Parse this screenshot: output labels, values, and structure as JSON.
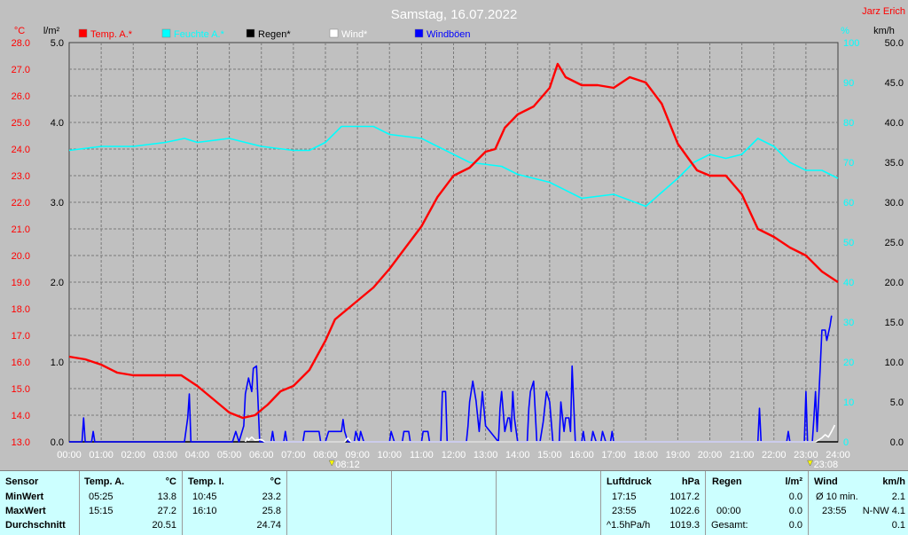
{
  "header": {
    "title": "Samstag, 16.07.2022",
    "author": "Jarz Erich"
  },
  "legend": [
    {
      "label": "Temp. A.*",
      "color": "#ff0000"
    },
    {
      "label": "Feuchte A.*",
      "color": "#00ffff"
    },
    {
      "label": "Regen*",
      "color": "#000000"
    },
    {
      "label": "Wind*",
      "color": "#ffffff"
    },
    {
      "label": "Windböen",
      "color": "#0000ff"
    }
  ],
  "axes": {
    "temp_unit": "°C",
    "rain_unit": "l/m²",
    "hum_unit": "%",
    "wind_unit": "km/h",
    "temp_ticks": [
      "28.0",
      "27.0",
      "26.0",
      "25.0",
      "24.0",
      "23.0",
      "22.0",
      "21.0",
      "20.0",
      "19.0",
      "18.0",
      "17.0",
      "16.0",
      "15.0",
      "14.0",
      "13.0"
    ],
    "rain_ticks": [
      "5.0",
      "4.0",
      "3.0",
      "2.0",
      "1.0",
      "0.0"
    ],
    "hum_ticks": [
      "100",
      "90",
      "80",
      "70",
      "60",
      "50",
      "40",
      "30",
      "20",
      "10",
      "0"
    ],
    "wind_ticks": [
      "50.0",
      "45.0",
      "40.0",
      "35.0",
      "30.0",
      "25.0",
      "20.0",
      "15.0",
      "10.0",
      "5.0",
      "0.0"
    ],
    "time_ticks": [
      "00:00",
      "01:00",
      "02:00",
      "03:00",
      "04:00",
      "05:00",
      "06:00",
      "07:00",
      "08:00",
      "09:00",
      "10:00",
      "11:00",
      "12:00",
      "13:00",
      "14:00",
      "15:00",
      "16:00",
      "17:00",
      "18:00",
      "19:00",
      "20:00",
      "21:00",
      "22:00",
      "23:00",
      "24:00"
    ],
    "markers": [
      {
        "time": 8.2,
        "label": "08:12"
      },
      {
        "time": 23.13,
        "label": "23:08"
      }
    ]
  },
  "chart_data": {
    "type": "line",
    "title": "Samstag, 16.07.2022",
    "xlim": [
      0,
      24
    ],
    "temp_ylim": [
      13,
      28
    ],
    "rain_ylim": [
      0,
      5
    ],
    "hum_ylim": [
      0,
      100
    ],
    "wind_ylim": [
      0,
      50
    ],
    "grid": true,
    "series": [
      {
        "name": "Temp. A.*",
        "color": "#ff0000",
        "axis": "temp",
        "points": [
          [
            0,
            16.2
          ],
          [
            0.5,
            16.1
          ],
          [
            1,
            15.9
          ],
          [
            1.5,
            15.6
          ],
          [
            2,
            15.5
          ],
          [
            2.5,
            15.5
          ],
          [
            3.3,
            15.5
          ],
          [
            3.5,
            15.5
          ],
          [
            4,
            15.1
          ],
          [
            4.5,
            14.6
          ],
          [
            5,
            14.1
          ],
          [
            5.42,
            13.9
          ],
          [
            5.8,
            14
          ],
          [
            6.2,
            14.4
          ],
          [
            6.6,
            14.9
          ],
          [
            7,
            15.1
          ],
          [
            7.5,
            15.7
          ],
          [
            8,
            16.8
          ],
          [
            8.3,
            17.6
          ],
          [
            8.7,
            18
          ],
          [
            9,
            18.3
          ],
          [
            9.5,
            18.8
          ],
          [
            10,
            19.5
          ],
          [
            10.5,
            20.3
          ],
          [
            11,
            21.1
          ],
          [
            11.5,
            22.2
          ],
          [
            12,
            23
          ],
          [
            12.5,
            23.3
          ],
          [
            13,
            23.9
          ],
          [
            13.3,
            24
          ],
          [
            13.6,
            24.8
          ],
          [
            14,
            25.3
          ],
          [
            14.5,
            25.6
          ],
          [
            15,
            26.3
          ],
          [
            15.25,
            27.2
          ],
          [
            15.5,
            26.7
          ],
          [
            16,
            26.4
          ],
          [
            16.5,
            26.4
          ],
          [
            17,
            26.3
          ],
          [
            17.5,
            26.7
          ],
          [
            18,
            26.5
          ],
          [
            18.5,
            25.7
          ],
          [
            19,
            24.2
          ],
          [
            19.3,
            23.7
          ],
          [
            19.6,
            23.2
          ],
          [
            20,
            23
          ],
          [
            20.5,
            23
          ],
          [
            21,
            22.3
          ],
          [
            21.5,
            21
          ],
          [
            22,
            20.7
          ],
          [
            22.5,
            20.3
          ],
          [
            23,
            20
          ],
          [
            23.5,
            19.4
          ],
          [
            24,
            19
          ]
        ]
      },
      {
        "name": "Feuchte A.*",
        "color": "#00ffff",
        "axis": "hum",
        "points": [
          [
            0,
            73
          ],
          [
            1,
            74
          ],
          [
            2,
            74
          ],
          [
            3,
            75
          ],
          [
            3.6,
            76
          ],
          [
            4,
            75
          ],
          [
            5,
            76
          ],
          [
            6,
            74
          ],
          [
            7,
            73
          ],
          [
            7.5,
            73
          ],
          [
            8,
            75
          ],
          [
            8.5,
            79
          ],
          [
            9,
            79
          ],
          [
            9.5,
            79
          ],
          [
            10,
            77
          ],
          [
            11,
            76
          ],
          [
            11.5,
            74
          ],
          [
            12,
            72
          ],
          [
            12.5,
            70
          ],
          [
            13.5,
            69
          ],
          [
            14,
            67
          ],
          [
            15,
            65
          ],
          [
            16,
            61
          ],
          [
            17,
            62
          ],
          [
            18,
            59
          ],
          [
            19,
            66
          ],
          [
            19.5,
            70
          ],
          [
            20,
            72
          ],
          [
            20.5,
            71
          ],
          [
            21,
            72
          ],
          [
            21.5,
            76
          ],
          [
            22,
            74
          ],
          [
            22.5,
            70
          ],
          [
            23,
            68
          ],
          [
            23.5,
            68
          ],
          [
            24,
            66
          ]
        ]
      },
      {
        "name": "Windböen",
        "color": "#0000ff",
        "axis": "wind",
        "points": [
          [
            0,
            0
          ],
          [
            0.4,
            0
          ],
          [
            0.45,
            3
          ],
          [
            0.5,
            0
          ],
          [
            0.7,
            0
          ],
          [
            0.75,
            1.3
          ],
          [
            0.8,
            0
          ],
          [
            3.6,
            0
          ],
          [
            3.7,
            3
          ],
          [
            3.75,
            6
          ],
          [
            3.8,
            0
          ],
          [
            5.1,
            0
          ],
          [
            5.2,
            1.3
          ],
          [
            5.3,
            0
          ],
          [
            5.45,
            2
          ],
          [
            5.5,
            6
          ],
          [
            5.6,
            8
          ],
          [
            5.7,
            6.3
          ],
          [
            5.75,
            9.2
          ],
          [
            5.85,
            9.5
          ],
          [
            5.95,
            0
          ],
          [
            6.3,
            0
          ],
          [
            6.35,
            1.3
          ],
          [
            6.4,
            0
          ],
          [
            6.7,
            0
          ],
          [
            6.75,
            1.3
          ],
          [
            6.8,
            0
          ],
          [
            7.3,
            0
          ],
          [
            7.35,
            1.3
          ],
          [
            7.8,
            1.3
          ],
          [
            7.85,
            0
          ],
          [
            8,
            0
          ],
          [
            8.1,
            1.3
          ],
          [
            8.5,
            1.3
          ],
          [
            8.55,
            2.8
          ],
          [
            8.6,
            1.3
          ],
          [
            8.7,
            0
          ],
          [
            8.9,
            0
          ],
          [
            8.95,
            1.3
          ],
          [
            9.05,
            0
          ],
          [
            9.1,
            1.3
          ],
          [
            9.2,
            0
          ],
          [
            10,
            0
          ],
          [
            10.05,
            1.3
          ],
          [
            10.15,
            0
          ],
          [
            10.4,
            0
          ],
          [
            10.45,
            1.3
          ],
          [
            10.6,
            1.3
          ],
          [
            10.65,
            0
          ],
          [
            11.0,
            0
          ],
          [
            11.05,
            1.3
          ],
          [
            11.2,
            1.3
          ],
          [
            11.25,
            0
          ],
          [
            11.6,
            0
          ],
          [
            11.65,
            6.3
          ],
          [
            11.75,
            6.3
          ],
          [
            11.8,
            0
          ],
          [
            12.4,
            0
          ],
          [
            12.45,
            2
          ],
          [
            12.5,
            5
          ],
          [
            12.6,
            7.6
          ],
          [
            12.7,
            5.2
          ],
          [
            12.8,
            1.3
          ],
          [
            12.9,
            6.3
          ],
          [
            13,
            2
          ],
          [
            13.4,
            0
          ],
          [
            13.45,
            4.2
          ],
          [
            13.5,
            6.3
          ],
          [
            13.6,
            1.3
          ],
          [
            13.7,
            3
          ],
          [
            13.75,
            3
          ],
          [
            13.8,
            1.3
          ],
          [
            13.85,
            6.3
          ],
          [
            13.9,
            3
          ],
          [
            14.0,
            0
          ],
          [
            14.3,
            0
          ],
          [
            14.35,
            4.2
          ],
          [
            14.4,
            6.3
          ],
          [
            14.5,
            7.6
          ],
          [
            14.6,
            0
          ],
          [
            14.7,
            0
          ],
          [
            14.8,
            2.5
          ],
          [
            14.9,
            6.3
          ],
          [
            15.0,
            5
          ],
          [
            15.1,
            0
          ],
          [
            15.3,
            0
          ],
          [
            15.35,
            5
          ],
          [
            15.45,
            1.3
          ],
          [
            15.5,
            3
          ],
          [
            15.6,
            3
          ],
          [
            15.65,
            1.3
          ],
          [
            15.7,
            9.5
          ],
          [
            15.8,
            0
          ],
          [
            16,
            0
          ],
          [
            16.05,
            1.3
          ],
          [
            16.1,
            0
          ],
          [
            16.3,
            0
          ],
          [
            16.35,
            1.3
          ],
          [
            16.45,
            0
          ],
          [
            16.6,
            0
          ],
          [
            16.65,
            1.3
          ],
          [
            16.75,
            0
          ],
          [
            16.9,
            0
          ],
          [
            16.95,
            1.3
          ],
          [
            17,
            0
          ],
          [
            21.5,
            0
          ],
          [
            21.55,
            4.2
          ],
          [
            21.6,
            0
          ],
          [
            22.4,
            0
          ],
          [
            22.45,
            1.3
          ],
          [
            22.5,
            0
          ],
          [
            22.95,
            0
          ],
          [
            23,
            6.3
          ],
          [
            23.05,
            0
          ],
          [
            23.2,
            0
          ],
          [
            23.25,
            3
          ],
          [
            23.3,
            6.3
          ],
          [
            23.35,
            1.3
          ],
          [
            23.45,
            9.5
          ],
          [
            23.5,
            14
          ],
          [
            23.6,
            14
          ],
          [
            23.65,
            12.7
          ],
          [
            23.75,
            14.5
          ],
          [
            23.8,
            15.8
          ]
        ]
      },
      {
        "name": "Wind*",
        "color": "#ffffff",
        "axis": "wind",
        "points": [
          [
            5.5,
            0
          ],
          [
            5.55,
            0.5
          ],
          [
            5.6,
            0.2
          ],
          [
            5.7,
            0.6
          ],
          [
            5.8,
            0.2
          ],
          [
            6,
            0.3
          ],
          [
            6.1,
            0
          ],
          [
            8.6,
            0
          ],
          [
            8.7,
            0.5
          ],
          [
            8.8,
            0
          ],
          [
            23.3,
            0
          ],
          [
            23.5,
            0.5
          ],
          [
            23.6,
            0.9
          ],
          [
            23.7,
            0.6
          ],
          [
            23.8,
            1.3
          ],
          [
            23.9,
            2.1
          ]
        ]
      },
      {
        "name": "Regen*",
        "color": "#000000",
        "axis": "rain",
        "points": [
          [
            0,
            0
          ],
          [
            24,
            0
          ]
        ]
      }
    ]
  },
  "stats": {
    "sensor": {
      "header": "Sensor",
      "min": "MinWert",
      "max": "MaxWert",
      "avg": "Durchschnitt"
    },
    "tempA": {
      "name": "Temp. A.",
      "unit": "°C",
      "min_time": "05:25",
      "min_val": "13.8",
      "max_time": "15:15",
      "max_val": "27.2",
      "avg": "20.51"
    },
    "tempI": {
      "name": "Temp. I.",
      "unit": "°C",
      "min_time": "10:45",
      "min_val": "23.2",
      "max_time": "16:10",
      "max_val": "25.8",
      "avg": "24.74"
    },
    "press": {
      "name": "Luftdruck",
      "unit": "hPa",
      "min_time": "17:15",
      "min_val": "1017.2",
      "max_time": "23:55",
      "max_val": "1022.6",
      "avg_label": "^1.5hPa/h",
      "avg": "1019.3"
    },
    "rain": {
      "name": "Regen",
      "unit": "l/m²",
      "max_time": "00:00",
      "min_val": "0.0",
      "max_val": "0.0",
      "avg_label": "Gesamt:",
      "avg": "0.0"
    },
    "wind": {
      "name": "Wind",
      "unit": "km/h",
      "min_label": "Ø 10 min.",
      "min_val": "2.1",
      "max_time": "23:55",
      "max_val": "N-NW 4.1",
      "avg": "0.1"
    }
  }
}
